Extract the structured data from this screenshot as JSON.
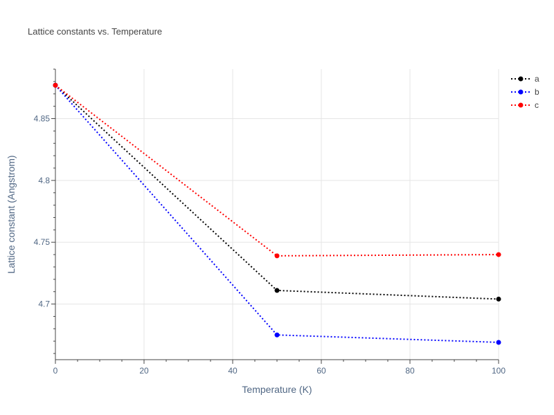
{
  "chart_data": {
    "type": "line",
    "title": "Lattice constants vs. Temperature",
    "xlabel": "Temperature (K)",
    "ylabel": "Lattice constant (Angstrom)",
    "xlim": [
      0,
      100
    ],
    "ylim": [
      4.655,
      4.89
    ],
    "xticks": [
      0,
      20,
      40,
      60,
      80,
      100
    ],
    "yticks": [
      4.7,
      4.75,
      4.8,
      4.85
    ],
    "ytick_labels": [
      "4.7",
      "4.75",
      "4.8",
      "4.85"
    ],
    "grid": true,
    "line_style": "dotted",
    "marker": "circle",
    "legend_position": "top-right",
    "series": [
      {
        "name": "a",
        "color": "#000000",
        "x": [
          0,
          50,
          100
        ],
        "y": [
          4.877,
          4.711,
          4.704
        ]
      },
      {
        "name": "b",
        "color": "#0000ff",
        "x": [
          0,
          50,
          100
        ],
        "y": [
          4.877,
          4.675,
          4.669
        ]
      },
      {
        "name": "c",
        "color": "#ff0000",
        "x": [
          0,
          50,
          100
        ],
        "y": [
          4.877,
          4.739,
          4.74
        ]
      }
    ]
  }
}
